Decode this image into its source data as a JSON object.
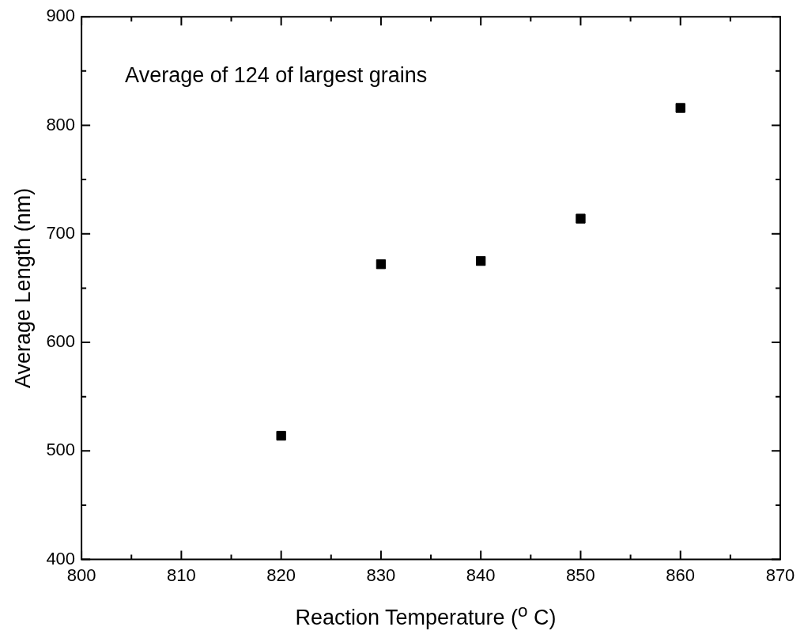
{
  "chart_data": {
    "type": "scatter",
    "xlabel": "Reaction Temperature ($^{o}$ C)",
    "ylabel": "Average Length (nm)",
    "annotations": [
      "Average of 124 of largest grains"
    ],
    "x": [
      820,
      830,
      840,
      850,
      860
    ],
    "series": [
      {
        "color": "#000000",
        "values": [
          514,
          672,
          675,
          714,
          816
        ]
      }
    ],
    "marker": "square",
    "xlim": [
      800,
      870
    ],
    "xticks": [
      800,
      {
        "value": 805,
        "label": null
      },
      810,
      {
        "value": 815,
        "label": null
      },
      820,
      {
        "value": 825,
        "label": null
      },
      830,
      {
        "value": 835,
        "label": null
      },
      840,
      {
        "value": 845,
        "label": null
      },
      850,
      {
        "value": 855,
        "label": null
      },
      860,
      {
        "value": 865,
        "label": null
      },
      870
    ],
    "ylim": [
      400,
      900
    ],
    "yticks": [
      400,
      {
        "value": 450,
        "label": null
      },
      500,
      {
        "value": 550,
        "label": null
      },
      600,
      {
        "value": 650,
        "label": null
      },
      700,
      {
        "value": 750,
        "label": null
      },
      800,
      {
        "value": 850,
        "label": null
      },
      900
    ],
    "grid": false,
    "legend": false
  }
}
